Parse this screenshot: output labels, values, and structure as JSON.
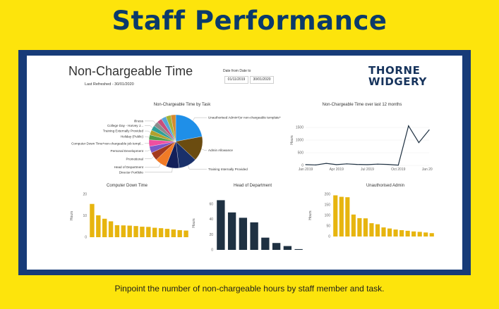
{
  "headline": "Staff Performance",
  "caption": "Pinpoint the number of non-chargeable hours by staff member and task.",
  "report": {
    "title": "Non-Chargeable Time",
    "last_refreshed": "Last Refreshed - 30/01/2020",
    "date_filter_label": "Date from Date to",
    "date_from": "01/11/2019",
    "date_to": "30/01/2020"
  },
  "brand": {
    "line1": "THORNE",
    "line2": "WIDGERY"
  },
  "colors": {
    "accent": "#fde40c",
    "navy": "#173b78",
    "bar_gold": "#e7b50f",
    "bar_navy": "#1f3142"
  },
  "chart_data": [
    {
      "type": "pie",
      "title": "Non-Chargeable Time by Task",
      "slices": [
        {
          "label": "Unauthorised Admin*(or non-chargeable template*",
          "value": 22,
          "color": "#1f8fe8"
        },
        {
          "label": "Admin Allowance",
          "value": 15,
          "color": "#6b4c10"
        },
        {
          "label": "Training Internally Provided",
          "value": 11,
          "color": "#19306a"
        },
        {
          "label": "Director Portfolio",
          "value": 8,
          "color": "#13205a"
        },
        {
          "label": "Head of Department",
          "value": 7,
          "color": "#f07a26"
        },
        {
          "label": "Promotional",
          "value": 5,
          "color": "#a33a1e"
        },
        {
          "label": "Personal Development",
          "value": 4,
          "color": "#7b58c7"
        },
        {
          "label": "Computer Down Time*non-chargeable job templ...",
          "value": 4,
          "color": "#ef4fa0"
        },
        {
          "label": "Holiday (Public)",
          "value": 3,
          "color": "#4f9c48"
        },
        {
          "label": "Training Externally Provided",
          "value": 3,
          "color": "#b1a02c"
        },
        {
          "label": "College Day - Harvey J...",
          "value": 3,
          "color": "#2e9f98"
        },
        {
          "label": "Illness",
          "value": 3,
          "color": "#8c8c8c"
        },
        {
          "label": "",
          "value": 3,
          "color": "#c94f7c"
        },
        {
          "label": "",
          "value": 3,
          "color": "#56a6d9"
        },
        {
          "label": "",
          "value": 3,
          "color": "#a4b237"
        },
        {
          "label": "",
          "value": 3,
          "color": "#d68a2e"
        }
      ]
    },
    {
      "type": "line",
      "title": "Non-Chargeable Time over last 12 months",
      "ylabel": "Hours",
      "ylim": [
        0,
        2000
      ],
      "yticks": [
        "0",
        "500",
        "1000",
        "1500"
      ],
      "xticks": [
        "Jan 2019",
        "Apr 2019",
        "Jul 2019",
        "Oct 2019",
        "Jan 2020"
      ],
      "x": [
        "Jan 2019",
        "Feb 2019",
        "Mar 2019",
        "Apr 2019",
        "May 2019",
        "Jun 2019",
        "Jul 2019",
        "Aug 2019",
        "Sep 2019",
        "Oct 2019",
        "Nov 2019",
        "Dec 2019",
        "Jan 2020"
      ],
      "values": [
        30,
        20,
        80,
        30,
        60,
        40,
        30,
        50,
        40,
        10,
        1560,
        900,
        1400
      ],
      "color": "#1f3142"
    },
    {
      "type": "bar",
      "title": "Computer Down Time",
      "ylabel": "Hours",
      "ylim": [
        0,
        20
      ],
      "yticks": [
        "0",
        "10",
        "20"
      ],
      "values": [
        15.5,
        10.2,
        8.6,
        7.4,
        5.6,
        5.5,
        5.4,
        5.2,
        4.9,
        4.8,
        4.4,
        4.2,
        3.9,
        3.6,
        3.3,
        3.1
      ],
      "color": "#e7b50f"
    },
    {
      "type": "bar",
      "title": "Head of Department",
      "ylabel": "Hours",
      "ylim": [
        0,
        70
      ],
      "yticks": [
        "0",
        "20",
        "40",
        "60"
      ],
      "values": [
        65,
        49,
        42,
        36,
        16,
        9,
        5,
        1
      ],
      "color": "#1f3142"
    },
    {
      "type": "bar",
      "title": "Unauthorised Admin",
      "ylabel": "Hours",
      "ylim": [
        0,
        200
      ],
      "yticks": [
        "0",
        "50",
        "100",
        "150",
        "200"
      ],
      "values": [
        195,
        188,
        186,
        104,
        87,
        86,
        63,
        58,
        43,
        38,
        33,
        30,
        27,
        24,
        22,
        19,
        16
      ],
      "color": "#e7b50f"
    }
  ]
}
